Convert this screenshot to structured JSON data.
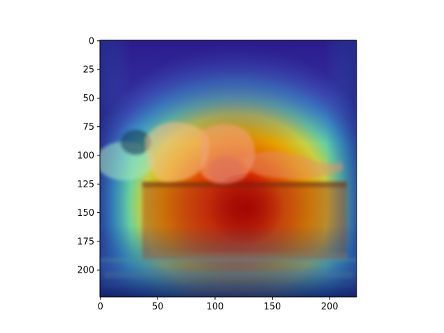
{
  "chart_data": {
    "type": "heatmap",
    "title": "",
    "xlabel": "",
    "ylabel": "",
    "image_size": [
      224,
      224
    ],
    "xlim": [
      0,
      224
    ],
    "ylim": [
      224,
      0
    ],
    "x_ticks": [
      0,
      50,
      100,
      150,
      200
    ],
    "y_ticks": [
      0,
      25,
      50,
      75,
      100,
      125,
      150,
      175,
      200
    ],
    "x_tick_labels": [
      "0",
      "50",
      "100",
      "150",
      "200"
    ],
    "y_tick_labels": [
      "0",
      "25",
      "50",
      "75",
      "100",
      "125",
      "150",
      "175",
      "200"
    ],
    "colormap": "jet",
    "overlay": true,
    "hotspot_center": [
      120,
      145
    ],
    "colors": {
      "low": "#2a1a8c",
      "mid": "#4cc89a",
      "high": "#d00000"
    },
    "scene_palette": {
      "skin": "#f2b48a",
      "bed": "#b06020",
      "floor": "#3a7aa0",
      "background": "#3b2f8f"
    }
  }
}
